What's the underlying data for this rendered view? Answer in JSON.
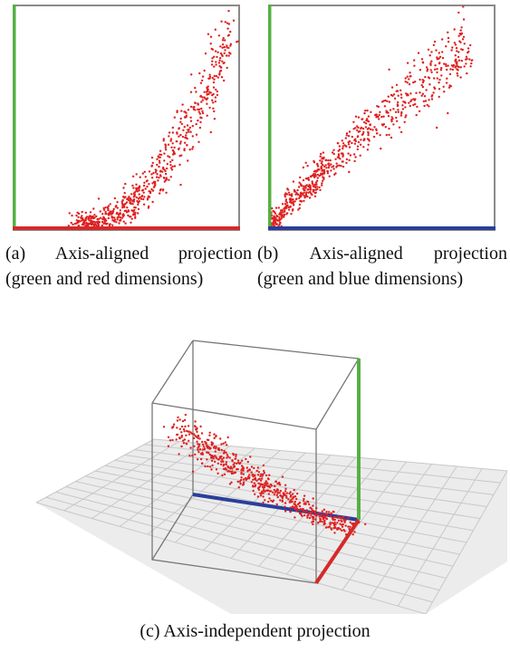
{
  "figure": {
    "panels": [
      {
        "id": "a",
        "caption_line1": [
          "(a)",
          "Axis-aligned",
          "projection"
        ],
        "caption_line2": "(green and red dimensions)",
        "axis_colors": {
          "vertical": "#55b043",
          "horizontal": "#d42a2a",
          "frame": "#8a8a8a"
        }
      },
      {
        "id": "b",
        "caption_line1": [
          "(b)",
          "Axis-aligned",
          "projection"
        ],
        "caption_line2": "(green and blue dimensions)",
        "axis_colors": {
          "vertical": "#55b043",
          "horizontal": "#2a3f9a",
          "frame": "#8a8a8a"
        }
      },
      {
        "id": "c",
        "caption": "(c)  Axis-independent projection",
        "axis_colors": {
          "green": "#55b043",
          "blue": "#2a3f9a",
          "red": "#d42a2a",
          "frame": "#777777",
          "grid": "#c8c8c8",
          "floor": "#ececec"
        }
      }
    ],
    "point_color": "#e02020"
  }
}
